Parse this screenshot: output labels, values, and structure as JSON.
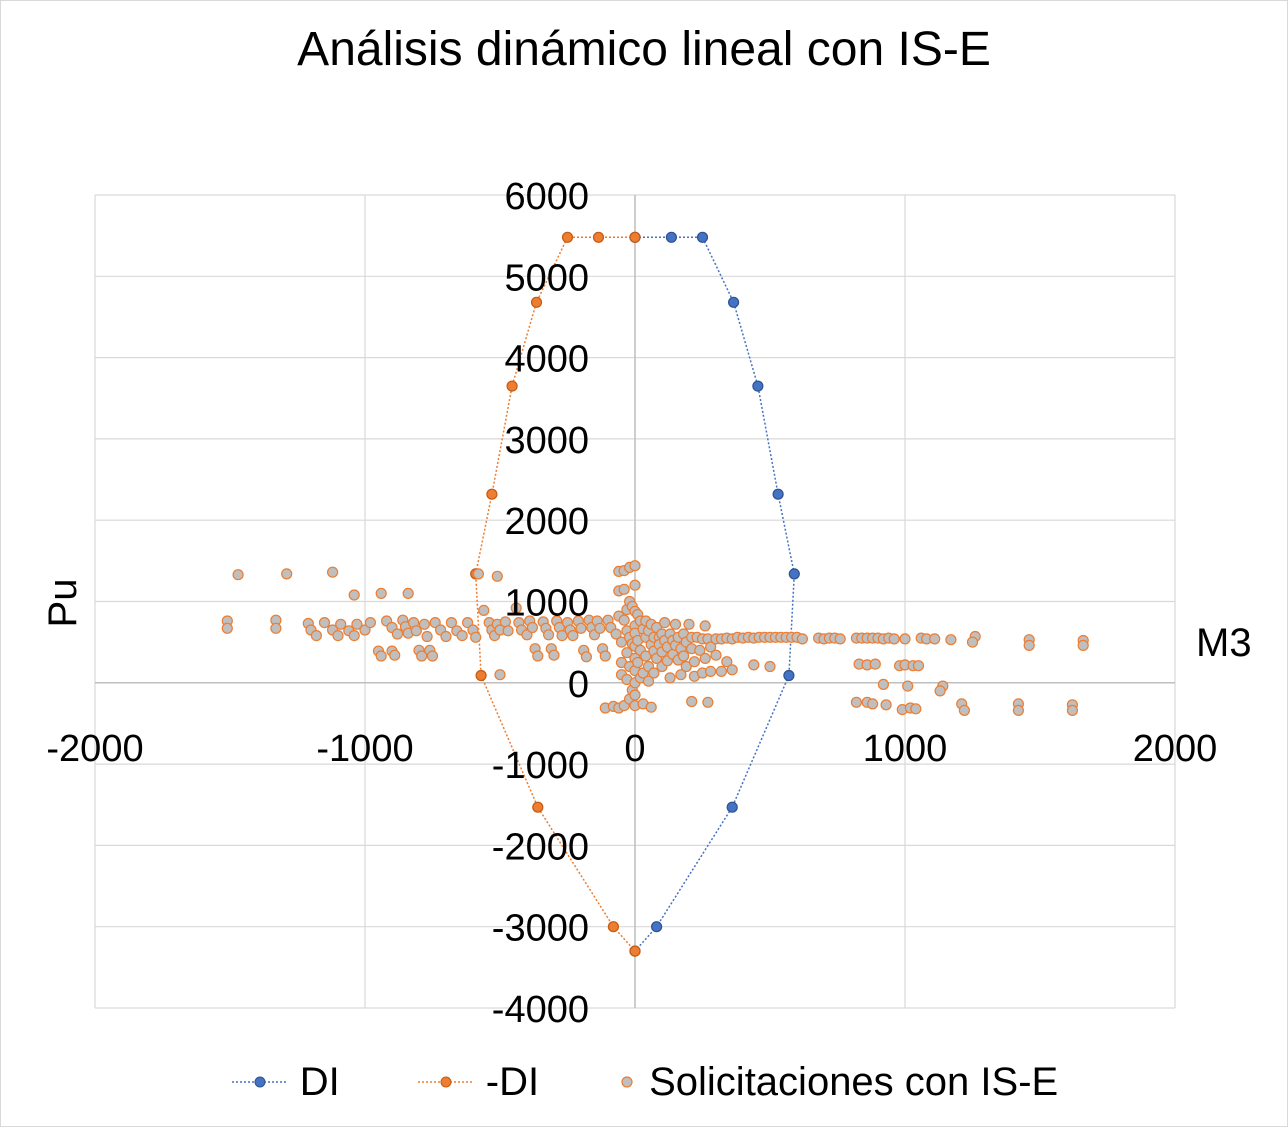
{
  "chart_data": {
    "type": "scatter",
    "title": "Análisis dinámico lineal con IS-E",
    "xlabel": "M3",
    "ylabel": "Pu",
    "xlim": [
      -2000,
      2000
    ],
    "ylim": [
      -4000,
      6000
    ],
    "x_ticks": [
      -2000,
      -1000,
      0,
      1000,
      2000
    ],
    "y_ticks": [
      -4000,
      -3000,
      -2000,
      -1000,
      0,
      1000,
      2000,
      3000,
      4000,
      5000,
      6000
    ],
    "grid": true,
    "legend_position": "bottom",
    "colors": {
      "di": "#4472c4",
      "neg_di": "#ed7d31",
      "solicitaciones_fill": "#bfbfbf",
      "solicitaciones_edge": "#ed7d31",
      "grid": "#d9d9d9"
    },
    "series": [
      {
        "name": "DI",
        "style": "dotted-line-with-markers",
        "points": [
          [
            0,
            5480
          ],
          [
            135,
            5480
          ],
          [
            250,
            5480
          ],
          [
            365,
            4680
          ],
          [
            455,
            3650
          ],
          [
            530,
            2320
          ],
          [
            590,
            1340
          ],
          [
            570,
            90
          ],
          [
            360,
            -1530
          ],
          [
            80,
            -3000
          ],
          [
            0,
            -3300
          ]
        ]
      },
      {
        "name": "-DI",
        "style": "dotted-line-with-markers",
        "points": [
          [
            0,
            5480
          ],
          [
            -135,
            5480
          ],
          [
            -250,
            5480
          ],
          [
            -365,
            4680
          ],
          [
            -455,
            3650
          ],
          [
            -530,
            2320
          ],
          [
            -590,
            1340
          ],
          [
            -570,
            90
          ],
          [
            -360,
            -1530
          ],
          [
            -80,
            -3000
          ],
          [
            0,
            -3300
          ]
        ]
      },
      {
        "name": "Solicitaciones con IS-E",
        "style": "markers-only",
        "points": [
          [
            -1470,
            1330
          ],
          [
            -1290,
            1340
          ],
          [
            -1120,
            1360
          ],
          [
            -1040,
            1080
          ],
          [
            -940,
            1100
          ],
          [
            -840,
            1100
          ],
          [
            -580,
            1340
          ],
          [
            -510,
            1310
          ],
          [
            -1510,
            760
          ],
          [
            -1510,
            670
          ],
          [
            -1330,
            770
          ],
          [
            -1330,
            670
          ],
          [
            -1210,
            730
          ],
          [
            -1200,
            650
          ],
          [
            -1180,
            580
          ],
          [
            -1150,
            740
          ],
          [
            -1120,
            650
          ],
          [
            -1100,
            580
          ],
          [
            -1090,
            720
          ],
          [
            -1060,
            640
          ],
          [
            -1040,
            580
          ],
          [
            -1030,
            720
          ],
          [
            -1000,
            650
          ],
          [
            -980,
            740
          ],
          [
            -950,
            390
          ],
          [
            -940,
            330
          ],
          [
            -920,
            760
          ],
          [
            -900,
            680
          ],
          [
            -900,
            390
          ],
          [
            -890,
            340
          ],
          [
            -880,
            600
          ],
          [
            -860,
            770
          ],
          [
            -850,
            690
          ],
          [
            -840,
            610
          ],
          [
            -820,
            740
          ],
          [
            -810,
            640
          ],
          [
            -800,
            400
          ],
          [
            -790,
            330
          ],
          [
            -780,
            720
          ],
          [
            -770,
            570
          ],
          [
            -760,
            400
          ],
          [
            -750,
            330
          ],
          [
            -740,
            740
          ],
          [
            -720,
            650
          ],
          [
            -700,
            570
          ],
          [
            -680,
            740
          ],
          [
            -660,
            640
          ],
          [
            -640,
            580
          ],
          [
            -620,
            740
          ],
          [
            -600,
            650
          ],
          [
            -590,
            560
          ],
          [
            -560,
            890
          ],
          [
            -540,
            740
          ],
          [
            -530,
            650
          ],
          [
            -520,
            580
          ],
          [
            -510,
            720
          ],
          [
            -500,
            650
          ],
          [
            -500,
            100
          ],
          [
            -480,
            750
          ],
          [
            -470,
            640
          ],
          [
            -440,
            920
          ],
          [
            -430,
            740
          ],
          [
            -420,
            650
          ],
          [
            -400,
            590
          ],
          [
            -390,
            760
          ],
          [
            -380,
            680
          ],
          [
            -370,
            420
          ],
          [
            -360,
            330
          ],
          [
            -340,
            750
          ],
          [
            -330,
            670
          ],
          [
            -320,
            590
          ],
          [
            -310,
            420
          ],
          [
            -300,
            340
          ],
          [
            -290,
            760
          ],
          [
            -280,
            680
          ],
          [
            -270,
            580
          ],
          [
            -250,
            740
          ],
          [
            -240,
            650
          ],
          [
            -230,
            580
          ],
          [
            -210,
            760
          ],
          [
            -200,
            670
          ],
          [
            -190,
            400
          ],
          [
            -180,
            320
          ],
          [
            -170,
            770
          ],
          [
            -160,
            680
          ],
          [
            -150,
            590
          ],
          [
            -140,
            760
          ],
          [
            -130,
            670
          ],
          [
            -120,
            420
          ],
          [
            -110,
            330
          ],
          [
            -110,
            -310
          ],
          [
            -100,
            770
          ],
          [
            -90,
            680
          ],
          [
            -80,
            -290
          ],
          [
            -70,
            600
          ],
          [
            -60,
            1370
          ],
          [
            -60,
            1130
          ],
          [
            -60,
            820
          ],
          [
            -60,
            -310
          ],
          [
            -50,
            500
          ],
          [
            -50,
            250
          ],
          [
            -50,
            100
          ],
          [
            -40,
            1380
          ],
          [
            -40,
            1150
          ],
          [
            -40,
            770
          ],
          [
            -40,
            -280
          ],
          [
            -30,
            900
          ],
          [
            -30,
            640
          ],
          [
            -30,
            370
          ],
          [
            -30,
            40
          ],
          [
            -20,
            1420
          ],
          [
            -20,
            1000
          ],
          [
            -20,
            560
          ],
          [
            -20,
            200
          ],
          [
            -20,
            -200
          ],
          [
            -10,
            940
          ],
          [
            -10,
            480
          ],
          [
            -10,
            -90
          ],
          [
            0,
            1440
          ],
          [
            0,
            1200
          ],
          [
            0,
            880
          ],
          [
            0,
            700
          ],
          [
            0,
            610
          ],
          [
            0,
            450
          ],
          [
            0,
            300
          ],
          [
            0,
            150
          ],
          [
            0,
            0
          ],
          [
            0,
            -150
          ],
          [
            0,
            -280
          ],
          [
            10,
            840
          ],
          [
            10,
            520
          ],
          [
            10,
            250
          ],
          [
            20,
            760
          ],
          [
            20,
            400
          ],
          [
            20,
            60
          ],
          [
            30,
            660
          ],
          [
            30,
            120
          ],
          [
            30,
            -260
          ],
          [
            40,
            760
          ],
          [
            40,
            560
          ],
          [
            40,
            330
          ],
          [
            50,
            640
          ],
          [
            50,
            200
          ],
          [
            50,
            20
          ],
          [
            60,
            720
          ],
          [
            60,
            470
          ],
          [
            60,
            -300
          ],
          [
            70,
            560
          ],
          [
            70,
            390
          ],
          [
            70,
            120
          ],
          [
            80,
            680
          ],
          [
            80,
            300
          ],
          [
            90,
            560
          ],
          [
            90,
            470
          ],
          [
            100,
            600
          ],
          [
            100,
            380
          ],
          [
            100,
            200
          ],
          [
            110,
            740
          ],
          [
            110,
            520
          ],
          [
            120,
            440
          ],
          [
            120,
            270
          ],
          [
            130,
            600
          ],
          [
            130,
            60
          ],
          [
            140,
            520
          ],
          [
            140,
            350
          ],
          [
            150,
            720
          ],
          [
            150,
            460
          ],
          [
            160,
            560
          ],
          [
            160,
            280
          ],
          [
            170,
            420
          ],
          [
            170,
            100
          ],
          [
            180,
            600
          ],
          [
            180,
            330
          ],
          [
            190,
            500
          ],
          [
            190,
            200
          ],
          [
            200,
            720
          ],
          [
            210,
            560
          ],
          [
            210,
            420
          ],
          [
            210,
            -230
          ],
          [
            220,
            260
          ],
          [
            220,
            80
          ],
          [
            230,
            560
          ],
          [
            240,
            400
          ],
          [
            250,
            540
          ],
          [
            250,
            120
          ],
          [
            260,
            300
          ],
          [
            260,
            700
          ],
          [
            270,
            540
          ],
          [
            270,
            -240
          ],
          [
            280,
            440
          ],
          [
            280,
            140
          ],
          [
            300,
            540
          ],
          [
            300,
            340
          ],
          [
            320,
            540
          ],
          [
            320,
            140
          ],
          [
            340,
            550
          ],
          [
            340,
            260
          ],
          [
            360,
            540
          ],
          [
            360,
            160
          ],
          [
            380,
            560
          ],
          [
            400,
            550
          ],
          [
            420,
            560
          ],
          [
            440,
            550
          ],
          [
            440,
            220
          ],
          [
            460,
            560
          ],
          [
            480,
            560
          ],
          [
            500,
            560
          ],
          [
            500,
            200
          ],
          [
            520,
            560
          ],
          [
            540,
            560
          ],
          [
            560,
            560
          ],
          [
            580,
            560
          ],
          [
            600,
            560
          ],
          [
            620,
            540
          ],
          [
            680,
            550
          ],
          [
            700,
            540
          ],
          [
            720,
            550
          ],
          [
            740,
            550
          ],
          [
            760,
            540
          ],
          [
            820,
            550
          ],
          [
            840,
            550
          ],
          [
            860,
            550
          ],
          [
            880,
            550
          ],
          [
            900,
            550
          ],
          [
            920,
            540
          ],
          [
            940,
            550
          ],
          [
            960,
            540
          ],
          [
            1000,
            540
          ],
          [
            1060,
            550
          ],
          [
            1080,
            540
          ],
          [
            1110,
            540
          ],
          [
            1170,
            530
          ],
          [
            1260,
            570
          ],
          [
            1250,
            500
          ],
          [
            1460,
            530
          ],
          [
            1460,
            460
          ],
          [
            1660,
            520
          ],
          [
            1660,
            460
          ],
          [
            830,
            230
          ],
          [
            860,
            220
          ],
          [
            890,
            230
          ],
          [
            980,
            210
          ],
          [
            1000,
            220
          ],
          [
            1030,
            210
          ],
          [
            1050,
            210
          ],
          [
            920,
            -20
          ],
          [
            1010,
            -40
          ],
          [
            1140,
            -40
          ],
          [
            1130,
            -100
          ],
          [
            820,
            -240
          ],
          [
            860,
            -240
          ],
          [
            880,
            -260
          ],
          [
            930,
            -270
          ],
          [
            990,
            -330
          ],
          [
            1020,
            -310
          ],
          [
            1040,
            -320
          ],
          [
            1210,
            -260
          ],
          [
            1220,
            -340
          ],
          [
            1420,
            -260
          ],
          [
            1420,
            -340
          ],
          [
            1620,
            -270
          ],
          [
            1620,
            -340
          ]
        ]
      }
    ]
  }
}
